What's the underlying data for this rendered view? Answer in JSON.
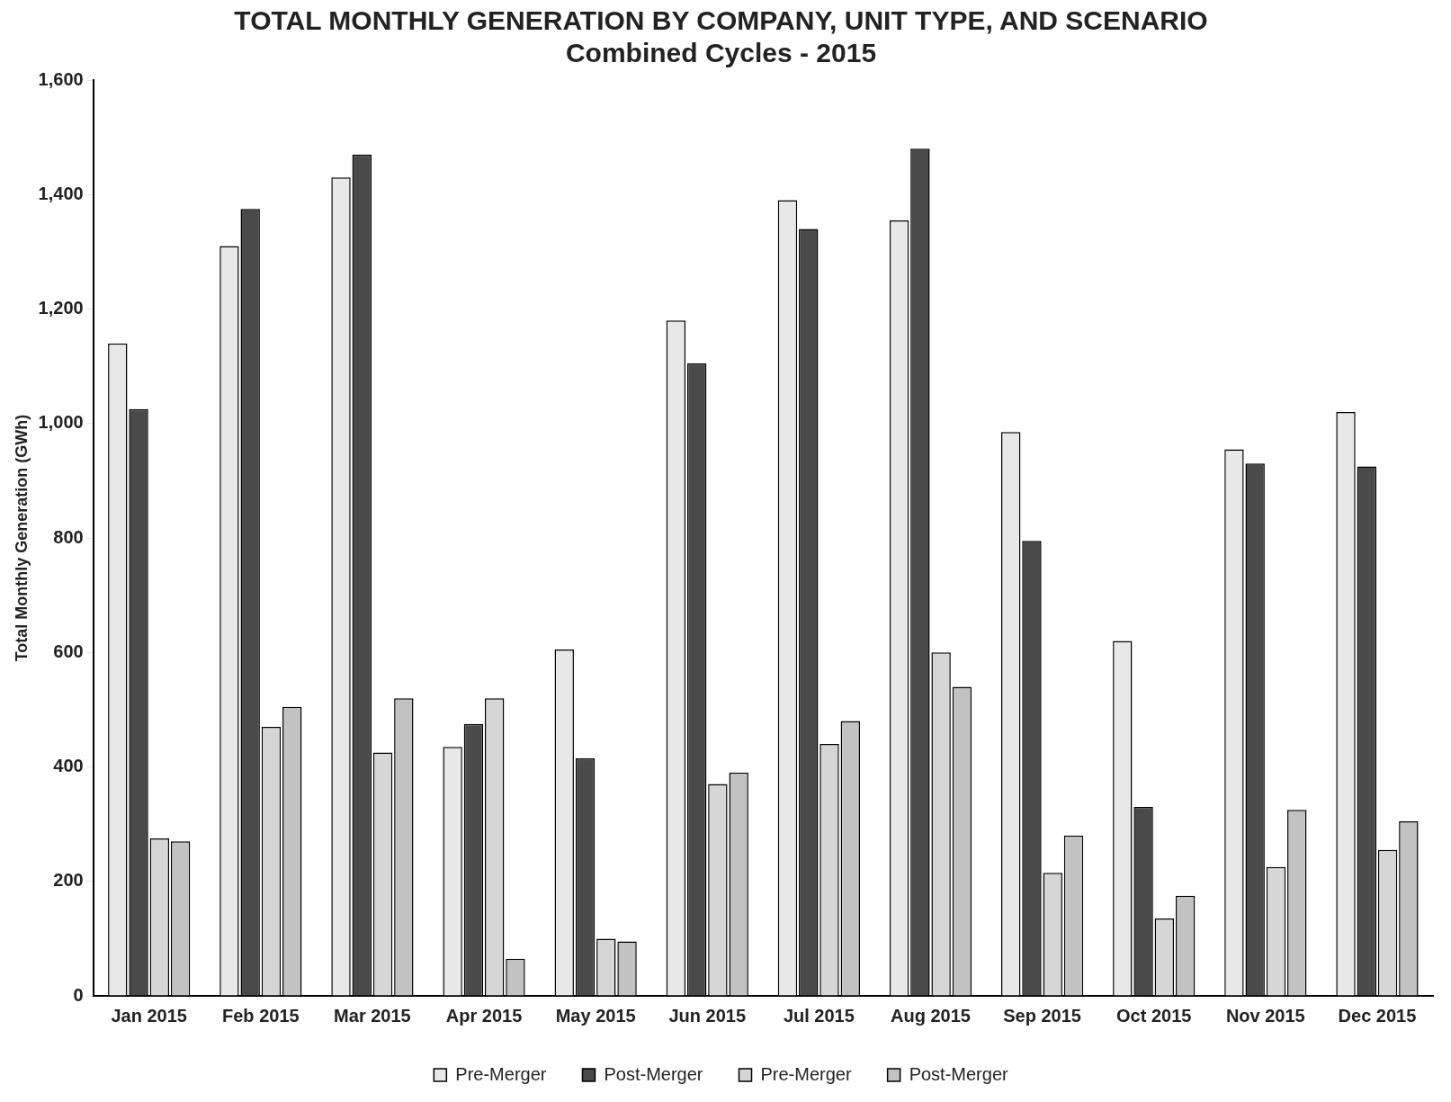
{
  "chart_data": {
    "type": "bar",
    "title": "TOTAL MONTHLY GENERATION BY COMPANY, UNIT TYPE, AND SCENARIO",
    "subtitle": "Combined Cycles - 2015",
    "ylabel": "Total Monthly Generation (GWh)",
    "categories": [
      "Jan 2015",
      "Feb 2015",
      "Mar 2015",
      "Apr 2015",
      "May 2015",
      "Jun 2015",
      "Jul 2015",
      "Aug 2015",
      "Sep 2015",
      "Oct 2015",
      "Nov 2015",
      "Dec 2015"
    ],
    "series": [
      {
        "name": "Pre-Merger",
        "color": "#e8e8e8",
        "values": [
          1140,
          1310,
          1430,
          435,
          605,
          1180,
          1390,
          1355,
          985,
          620,
          955,
          1020
        ]
      },
      {
        "name": "Post-Merger",
        "color": "#4a4a4a",
        "values": [
          1025,
          1375,
          1470,
          475,
          415,
          1105,
          1340,
          1480,
          795,
          330,
          930,
          925
        ]
      },
      {
        "name": "Pre-Merger",
        "color": "#d6d6d6",
        "values": [
          275,
          470,
          425,
          520,
          100,
          370,
          440,
          600,
          215,
          135,
          225,
          255
        ]
      },
      {
        "name": "Post-Merger",
        "color": "#c2c2c2",
        "values": [
          270,
          505,
          520,
          65,
          95,
          390,
          480,
          540,
          280,
          175,
          325,
          305
        ]
      }
    ],
    "ylim": [
      0,
      1600
    ],
    "yticks": [
      {
        "value": 0,
        "label": "0"
      },
      {
        "value": 200,
        "label": "200"
      },
      {
        "value": 400,
        "label": "400"
      },
      {
        "value": 600,
        "label": "600"
      },
      {
        "value": 800,
        "label": "800"
      },
      {
        "value": 1000,
        "label": "1,000"
      },
      {
        "value": 1200,
        "label": "1,200"
      },
      {
        "value": 1400,
        "label": "1,400"
      },
      {
        "value": 1600,
        "label": "1,600"
      }
    ],
    "grid": false,
    "legend": "bottom"
  }
}
